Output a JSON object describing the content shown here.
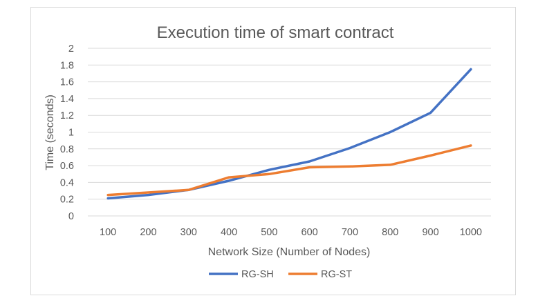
{
  "chart_data": {
    "type": "line",
    "title": "Execution time of smart contract",
    "xlabel": "Network Size (Number of Nodes)",
    "ylabel": "Time (seconds)",
    "categories": [
      "100",
      "200",
      "300",
      "400",
      "500",
      "600",
      "700",
      "800",
      "900",
      "1000"
    ],
    "ylim": [
      0,
      2
    ],
    "yticks": [
      "0",
      "0.2",
      "0.4",
      "0.6",
      "0.8",
      "1",
      "1.2",
      "1.4",
      "1.6",
      "1.8",
      "2"
    ],
    "grid": true,
    "legend_position": "bottom",
    "series": [
      {
        "name": "RG-SH",
        "color": "#4472c4",
        "values": [
          0.21,
          0.25,
          0.31,
          0.42,
          0.55,
          0.65,
          0.81,
          1.0,
          1.23,
          1.75
        ]
      },
      {
        "name": "RG-ST",
        "color": "#ed7d31",
        "values": [
          0.25,
          0.28,
          0.31,
          0.46,
          0.5,
          0.58,
          0.59,
          0.61,
          0.72,
          0.84
        ]
      }
    ]
  }
}
